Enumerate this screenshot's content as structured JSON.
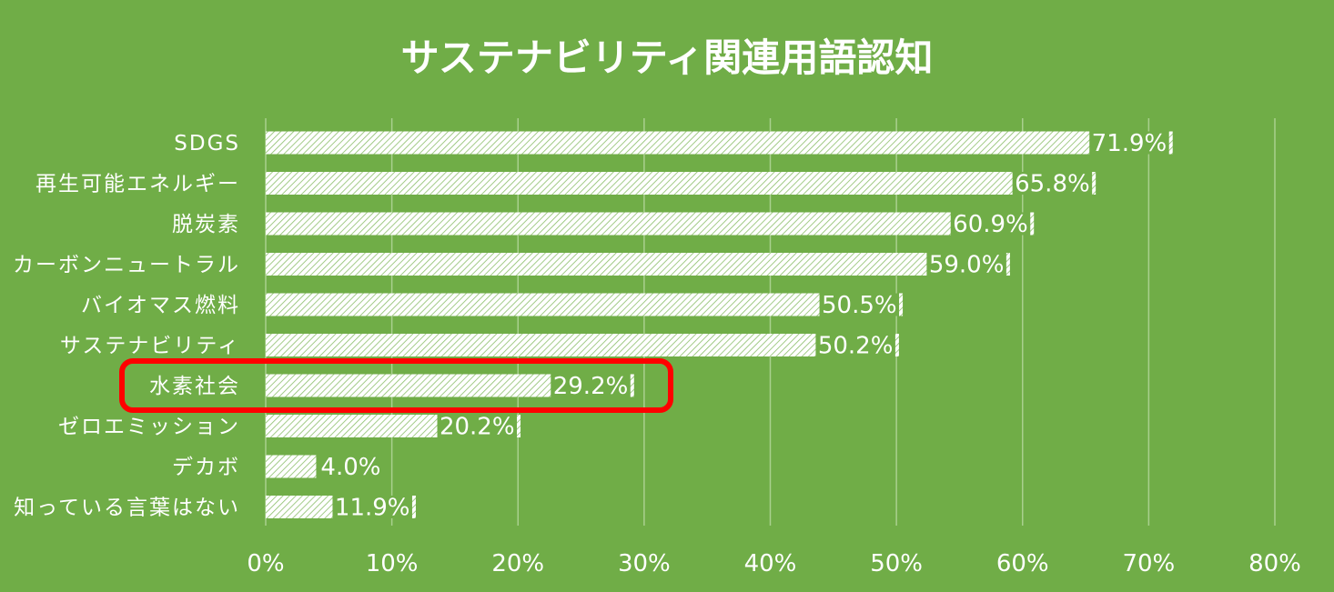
{
  "chart_data": {
    "type": "bar",
    "orientation": "horizontal",
    "title": "サステナビリティ関連用語認知",
    "categories": [
      "SDGS",
      "再生可能エネルギー",
      "脱炭素",
      "カーボンニュートラル",
      "バイオマス燃料",
      "サステナビリティ",
      "水素社会",
      "ゼロエミッション",
      "デカボ",
      "知っている言葉はない"
    ],
    "values": [
      71.9,
      65.8,
      60.9,
      59.0,
      50.5,
      50.2,
      29.2,
      20.2,
      4.0,
      11.9
    ],
    "value_labels": [
      "71.9%",
      "65.8%",
      "60.9%",
      "59.0%",
      "50.5%",
      "50.2%",
      "29.2%",
      "20.2%",
      "4.0%",
      "11.9%"
    ],
    "xlim": [
      0,
      80
    ],
    "xticks": [
      0,
      10,
      20,
      30,
      40,
      50,
      60,
      70,
      80
    ],
    "xtick_labels": [
      "0%",
      "10%",
      "20%",
      "30%",
      "40%",
      "50%",
      "60%",
      "70%",
      "80%"
    ],
    "grid": true,
    "highlighted_category": "水素社会",
    "colors": {
      "background": "#70AD47",
      "bar_fill": "#ffffff",
      "bar_hatch": "#8BBE6A",
      "gridline": "#A9D08E",
      "text": "#ffffff",
      "highlight": "#FF0000"
    }
  }
}
